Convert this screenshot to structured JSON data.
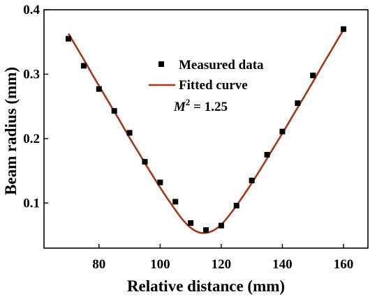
{
  "chart_data": {
    "type": "scatter",
    "xlabel": "Relative distance (mm)",
    "ylabel": "Beam radius (mm)",
    "xlim": [
      62,
      168
    ],
    "ylim": [
      0.03,
      0.4
    ],
    "xticks": [
      80,
      100,
      120,
      140,
      160
    ],
    "yticks": [
      0.1,
      0.2,
      0.3,
      0.4
    ],
    "xtick_labels": [
      "80",
      "100",
      "120",
      "140",
      "160"
    ],
    "ytick_labels": [
      "0.1",
      "0.2",
      "0.3",
      "0.4"
    ],
    "legend_position": "top-center",
    "annotation": {
      "prefix": "M",
      "superscript": "2",
      "suffix": " = 1.25"
    },
    "series": [
      {
        "name": "Measured data",
        "kind": "points",
        "color": "#000000",
        "x": [
          70,
          75,
          80,
          85,
          90,
          95,
          100,
          105,
          110,
          115,
          120,
          125,
          130,
          135,
          140,
          145,
          150,
          160
        ],
        "y": [
          0.355,
          0.313,
          0.277,
          0.243,
          0.209,
          0.164,
          0.132,
          0.102,
          0.069,
          0.058,
          0.065,
          0.096,
          0.135,
          0.175,
          0.211,
          0.255,
          0.298,
          0.37
        ]
      },
      {
        "name": "Fitted curve",
        "kind": "line",
        "color": "#a0391e",
        "x": [
          70,
          72.5,
          75,
          77.5,
          80,
          82.5,
          85,
          87.5,
          90,
          92.5,
          95,
          97.5,
          100,
          102.5,
          105,
          107.5,
          110,
          112.5,
          115,
          117.5,
          120,
          122.5,
          125,
          127.5,
          130,
          132.5,
          135,
          137.5,
          140,
          142.5,
          145,
          147.5,
          150,
          152.5,
          155,
          157.5,
          160
        ],
        "y": [
          0.363,
          0.343,
          0.323,
          0.302,
          0.282,
          0.262,
          0.242,
          0.222,
          0.201,
          0.182,
          0.162,
          0.143,
          0.124,
          0.106,
          0.089,
          0.073,
          0.061,
          0.054,
          0.053,
          0.057,
          0.066,
          0.08,
          0.096,
          0.113,
          0.131,
          0.15,
          0.169,
          0.189,
          0.208,
          0.228,
          0.248,
          0.268,
          0.288,
          0.309,
          0.329,
          0.349,
          0.369
        ]
      }
    ]
  }
}
